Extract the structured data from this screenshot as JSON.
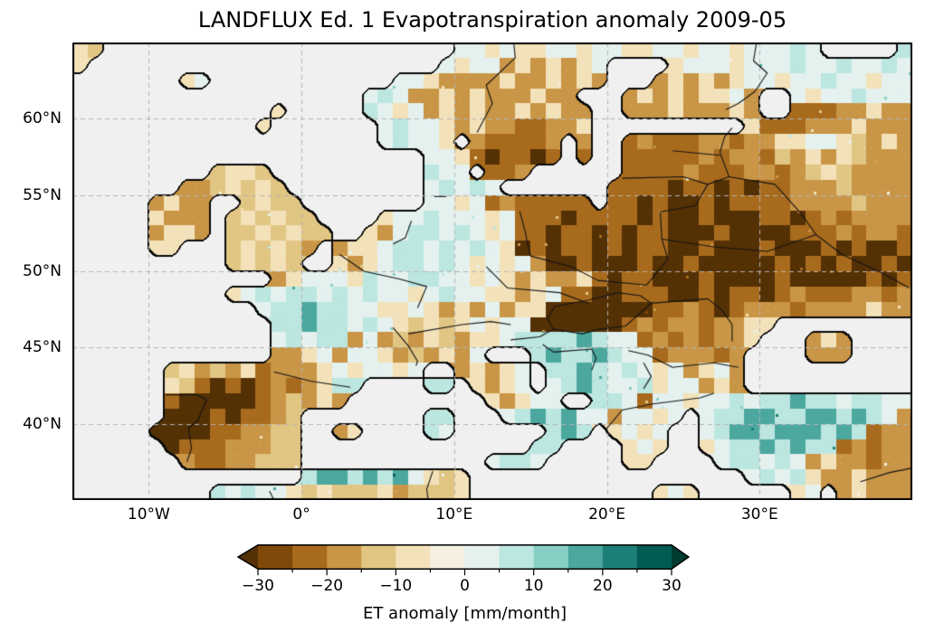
{
  "figure": {
    "title": "LANDFLUX Ed. 1 Evapotranspiration anomaly 2009-05",
    "background": "#ffffff"
  },
  "chart_data": {
    "type": "heatmap",
    "title": "LANDFLUX Ed. 1 Evapotranspiration anomaly 2009-05",
    "projection": "PlateCarree",
    "extent": {
      "lon_min": -15,
      "lon_max": 40,
      "lat_min": 35,
      "lat_max": 65
    },
    "x_ticks": {
      "values": [
        -10,
        0,
        10,
        20,
        30
      ],
      "labels": [
        "10°W",
        "0°",
        "10°E",
        "20°E",
        "30°E"
      ]
    },
    "y_ticks": {
      "values": [
        60,
        55,
        50,
        45,
        40
      ],
      "labels": [
        "60°N",
        "55°N",
        "50°N",
        "45°N",
        "40°N"
      ]
    },
    "gridlines": {
      "show": true,
      "color": "#b4b4b4",
      "dash": [
        5,
        4
      ]
    },
    "ocean_color": "#f0f0f0",
    "coast_color": "#000000",
    "border_color": "#141414",
    "colorbar": {
      "label": "ET anomaly [mm/month]",
      "range": [
        -30,
        30
      ],
      "level_step": 5,
      "extend": "both",
      "tick_values": [
        -30,
        -20,
        -10,
        0,
        10,
        20,
        30
      ],
      "tick_labels": [
        "−30",
        "−20",
        "−10",
        "0",
        "10",
        "20",
        "30"
      ],
      "minor_tick_values": [
        -25,
        -15,
        -5,
        5,
        15,
        25
      ],
      "colors": [
        "#543005",
        "#7f4909",
        "#a86b1d",
        "#c99546",
        "#e1c583",
        "#f3e2b9",
        "#f5f0e2",
        "#e4f1ef",
        "#bce6e0",
        "#86cfc4",
        "#4ca89f",
        "#1d8078",
        "#015c53",
        "#003c30"
      ]
    },
    "value_key": {
      ".": null,
      "0": 0,
      "1": -6,
      "2": -13,
      "3": -20,
      "4": -27,
      "a": 6,
      "b": 13,
      "c": 20,
      "d": 27
    },
    "noise_amplitude": 18,
    "grid": {
      "cols": 55,
      "rows_n": 30,
      "cell_deg": 1,
      "origin": "row 0 = 64-65N band, col 0 = 15W-14W band",
      "rows": [
        "a0.......................bbabaabbabbaabbabbabbbcb.....c",
        "a.......................babb1a1a1ab....abbbabbbcbbcbbcb",
        ".......ab............bba1111a11a1a1...1a1a1abbabbcbbabb",
        "...................bcb11a1a111a11...1a1a1aab1..babbcbbb",
        ".............a.....cbab1a1a11a1a11..111a111a1..22211a11",
        "............a.......bcbba1a112211a..........a222111a111",
        "....................bcbba.122221.1..2122211211aabba01a1",
        ".......................bba232232.2..222221211201a1a0111",
        ".........0aa0..........cbb.221......2222122211210a01111",
        ".......110a0a0.........bcbcb.......22223223232211101111",
        ".....1a11..0a00........bbab2122222.22323323222211110111",
        ".....a111.0a0a00....abbcbbbab22232222323323332232121111",
        ".....1aa1.00a0a00..a1bccbcbab22322323223332333322212112",
        ".....aa...0a0a01.1aabccbcbcba32322323223323332333232332",
        "..........0a0a0..a1abccbcbabab1332333233233333232323323",
        ".............1abbbacbbccbbaba1a11a232233323333233333232",
        "..........abcbccbcbcbbabcbbaa1ab22332223323223212221121",
        "............bccdccbbaaba1a1b1aa344434322123211121111a11",
        ".............ccdccbcba0a0ababb33433321211211aa.........",
        ".............bcbcc1b101a01aabccccdcbb2121211a...1a1....",
        ".............11ab1bba101a1b...cdccdcbb211121....111....",
        "......0a101a2111ababbab..1a1ab.ccdcbcbab1ab1...........",
        "......a023232121acc....cc.a1ab.bcdcbbcabb1a1...........",
        "......2334332101a1.........a1abb..ccb2bbabbcbccdccbccbb",
        "......333232210........cc...bcdcdbb1bbab.bccddccddcdcb1",
        ".....3433221100..1a....cb......cdc.abab..bcddcdddcdc211",
        "......322211100...............cc....aba..abccdcdcc21211",
        ".......12211000............bccb.....aa....bccbcb1a11211",
        "...............cddcdcdba0a..................bcbca11a111",
        ".........cbcbba0a000a1000a............aba......ab.1a111"
      ]
    },
    "borders": [
      [
        [
          11.5,
          59.1
        ],
        [
          12.5,
          61.0
        ],
        [
          12.1,
          62.2
        ],
        [
          14.0,
          64.0
        ],
        [
          13.9,
          65.0
        ]
      ],
      [
        [
          29.8,
          65.0
        ],
        [
          29.6,
          63.8
        ],
        [
          30.5,
          63.0
        ],
        [
          29.7,
          61.8
        ],
        [
          28.6,
          61.0
        ],
        [
          27.8,
          60.6
        ]
      ],
      [
        [
          28.2,
          59.4
        ],
        [
          27.7,
          58.8
        ],
        [
          27.4,
          57.8
        ]
      ],
      [
        [
          24.3,
          57.9
        ],
        [
          27.4,
          57.6
        ]
      ],
      [
        [
          21.0,
          56.1
        ],
        [
          25.0,
          56.2
        ],
        [
          26.6,
          55.7
        ]
      ],
      [
        [
          27.4,
          57.8
        ],
        [
          28.0,
          56.2
        ],
        [
          26.6,
          55.7
        ]
      ],
      [
        [
          26.6,
          55.7
        ],
        [
          25.8,
          54.3
        ],
        [
          23.5,
          53.9
        ],
        [
          23.6,
          52.1
        ]
      ],
      [
        [
          14.3,
          53.9
        ],
        [
          14.6,
          52.8
        ],
        [
          15.0,
          51.0
        ]
      ],
      [
        [
          15.0,
          51.0
        ],
        [
          17.7,
          50.3
        ],
        [
          19.4,
          49.4
        ],
        [
          22.6,
          49.1
        ]
      ],
      [
        [
          12.1,
          50.3
        ],
        [
          13.5,
          48.9
        ]
      ],
      [
        [
          13.5,
          48.9
        ],
        [
          16.9,
          48.6
        ],
        [
          18.8,
          47.9
        ]
      ],
      [
        [
          8.7,
          54.9
        ],
        [
          9.5,
          54.9
        ]
      ],
      [
        [
          7.2,
          53.3
        ],
        [
          6.8,
          52.2
        ],
        [
          6.0,
          51.8
        ]
      ],
      [
        [
          2.5,
          51.1
        ],
        [
          4.1,
          50.0
        ],
        [
          6.4,
          49.5
        ],
        [
          8.2,
          49.0
        ],
        [
          7.6,
          47.6
        ]
      ],
      [
        [
          6.0,
          46.3
        ],
        [
          7.0,
          45.1
        ],
        [
          7.6,
          44.1
        ],
        [
          7.5,
          43.8
        ]
      ],
      [
        [
          -1.8,
          43.4
        ],
        [
          0.6,
          42.8
        ],
        [
          3.2,
          42.4
        ]
      ],
      [
        [
          -8.9,
          41.9
        ],
        [
          -6.9,
          41.9
        ],
        [
          -6.2,
          41.6
        ],
        [
          -6.8,
          40.2
        ],
        [
          -7.4,
          39.7
        ],
        [
          -7.2,
          38.4
        ],
        [
          -7.5,
          37.5
        ]
      ],
      [
        [
          7.0,
          45.9
        ],
        [
          10.5,
          46.5
        ],
        [
          12.4,
          46.7
        ],
        [
          13.7,
          46.5
        ]
      ],
      [
        [
          22.2,
          48.4
        ],
        [
          22.9,
          47.9
        ],
        [
          21.2,
          46.4
        ],
        [
          19.5,
          46.2
        ],
        [
          18.4,
          45.9
        ],
        [
          16.5,
          46.2
        ],
        [
          16.1,
          46.9
        ],
        [
          16.6,
          47.7
        ],
        [
          18.8,
          48.1
        ],
        [
          20.7,
          48.6
        ],
        [
          22.2,
          48.4
        ]
      ],
      [
        [
          21.4,
          44.8
        ],
        [
          22.7,
          44.5
        ],
        [
          24.3,
          43.7
        ],
        [
          27.0,
          44.0
        ],
        [
          28.6,
          43.7
        ]
      ],
      [
        [
          22.9,
          47.9
        ],
        [
          26.6,
          48.2
        ],
        [
          27.5,
          47.5
        ],
        [
          28.2,
          46.5
        ],
        [
          28.2,
          45.4
        ]
      ],
      [
        [
          23.6,
          52.1
        ],
        [
          27.0,
          51.6
        ],
        [
          30.5,
          51.3
        ],
        [
          33.7,
          52.4
        ]
      ],
      [
        [
          28.0,
          56.2
        ],
        [
          31.0,
          55.7
        ],
        [
          32.7,
          53.8
        ],
        [
          33.7,
          52.4
        ]
      ],
      [
        [
          33.7,
          52.4
        ],
        [
          35.4,
          51.1
        ],
        [
          38.0,
          49.9
        ],
        [
          39.8,
          48.9
        ]
      ],
      [
        [
          20.0,
          39.7
        ],
        [
          21.0,
          40.9
        ],
        [
          23.0,
          41.3
        ],
        [
          26.1,
          41.7
        ],
        [
          27.0,
          42.0
        ]
      ],
      [
        [
          15.8,
          45.2
        ],
        [
          16.5,
          44.7
        ],
        [
          19.0,
          44.9
        ],
        [
          19.3,
          44.3
        ],
        [
          19.0,
          43.5
        ]
      ],
      [
        [
          13.7,
          45.5
        ],
        [
          15.6,
          45.7
        ],
        [
          16.5,
          46.2
        ]
      ],
      [
        [
          22.4,
          44.0
        ],
        [
          22.9,
          43.1
        ],
        [
          22.4,
          42.3
        ]
      ],
      [
        [
          23.6,
          52.1
        ],
        [
          24.0,
          50.8
        ],
        [
          22.6,
          49.1
        ]
      ],
      [
        [
          36.6,
          36.2
        ],
        [
          38.5,
          36.8
        ],
        [
          40.0,
          37.1
        ]
      ],
      [
        [
          8.6,
          36.9
        ],
        [
          8.2,
          35.7
        ],
        [
          8.3,
          35.0
        ]
      ],
      [
        [
          -2.1,
          35.6
        ],
        [
          -1.8,
          35.0
        ]
      ]
    ]
  }
}
